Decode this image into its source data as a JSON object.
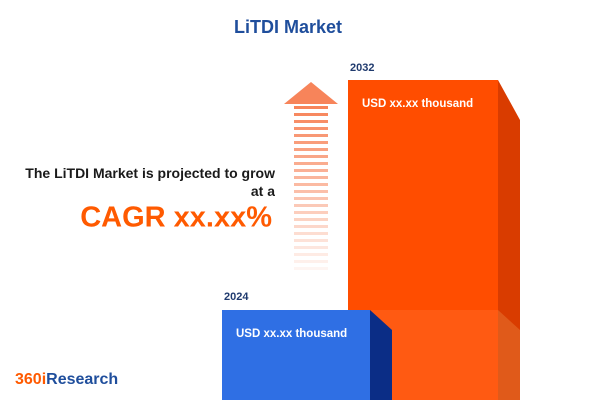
{
  "header": {
    "title": "LiTDI Market"
  },
  "bars": [
    {
      "year": "2024",
      "label": "USD xx.xx thousand"
    },
    {
      "year": "2032",
      "label": "USD xx.xx thousand"
    }
  ],
  "summary": {
    "text": "The LiTDI Market is projected to grow at a",
    "cagr": "CAGR xx.xx%"
  },
  "logo": {
    "prefix": "360i",
    "suffix": "Research"
  }
}
